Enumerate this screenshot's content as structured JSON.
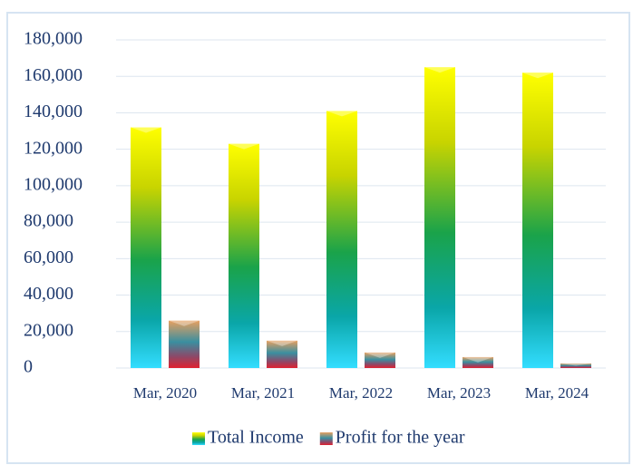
{
  "chart_data": {
    "type": "bar",
    "categories": [
      "Mar, 2020",
      "Mar, 2021",
      "Mar, 2022",
      "Mar, 2023",
      "Mar, 2024"
    ],
    "series": [
      {
        "name": "Total Income",
        "color": "#1aa34a",
        "values": [
          132000,
          123000,
          141000,
          165000,
          162000
        ]
      },
      {
        "name": "Profit for the year",
        "color": "#3a8fa0",
        "values": [
          26000,
          15000,
          8500,
          6000,
          2500
        ]
      }
    ],
    "ylim": [
      0,
      180000
    ],
    "yticks": [
      {
        "value": 0,
        "label": "0"
      },
      {
        "value": 20000,
        "label": "20,000"
      },
      {
        "value": 40000,
        "label": "40,000"
      },
      {
        "value": 60000,
        "label": "60,000"
      },
      {
        "value": 80000,
        "label": "80,000"
      },
      {
        "value": 100000,
        "label": "100,000"
      },
      {
        "value": 120000,
        "label": "120,000"
      },
      {
        "value": 140000,
        "label": "140,000"
      },
      {
        "value": 160000,
        "label": "160,000"
      },
      {
        "value": 180000,
        "label": "180,000"
      }
    ],
    "grid": true,
    "legend": "bottom"
  }
}
